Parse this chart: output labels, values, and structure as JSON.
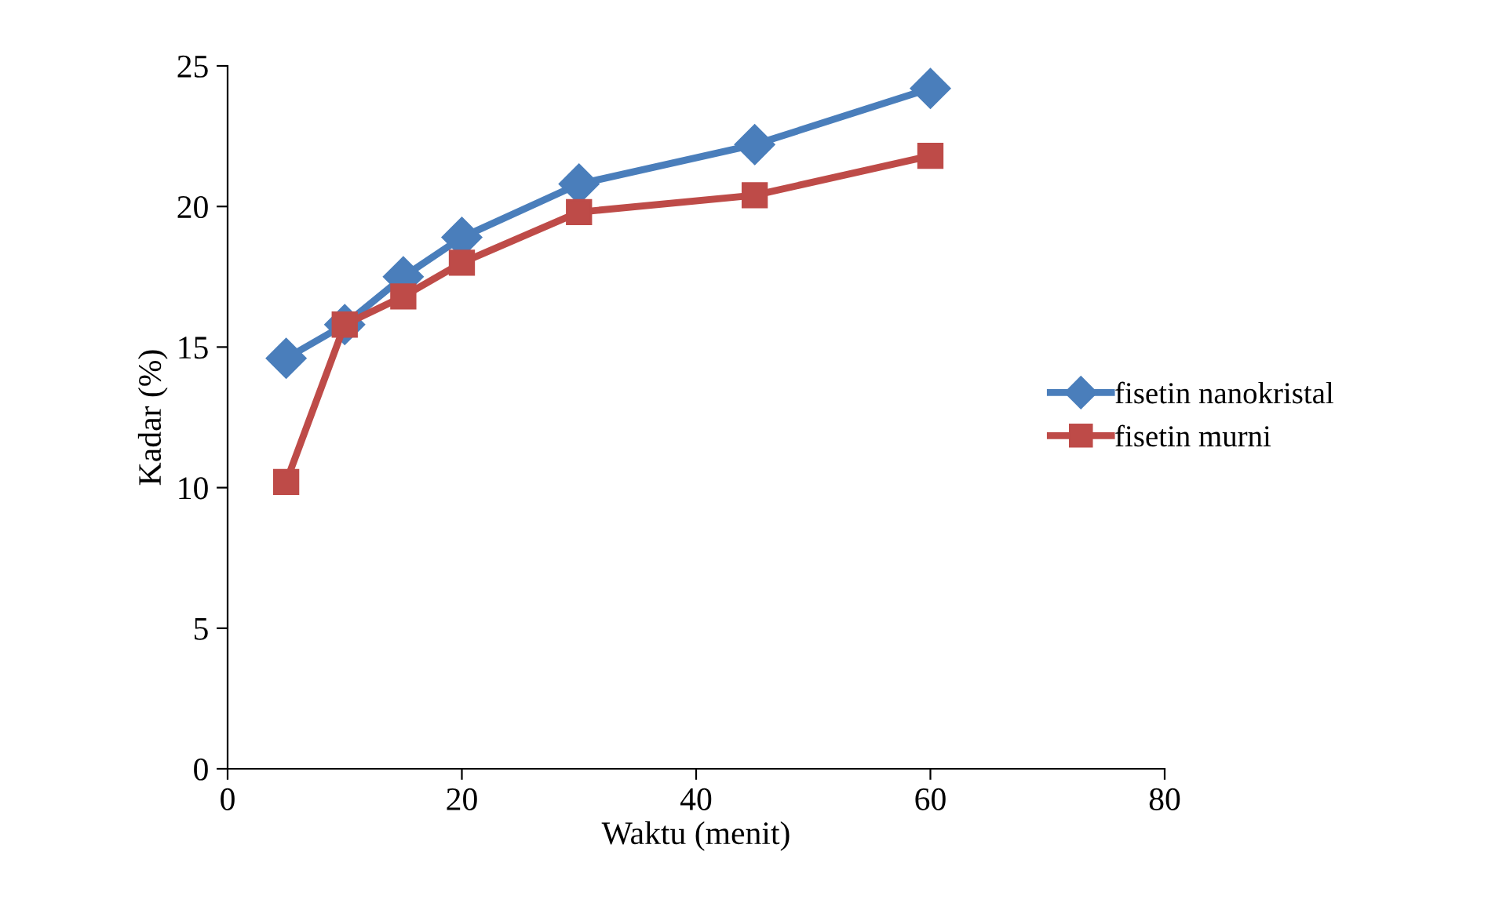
{
  "chart_data": {
    "type": "line",
    "xlabel": "Waktu (menit)",
    "ylabel": "Kadar (%)",
    "xlim": [
      0,
      80
    ],
    "xticks": [
      0,
      20,
      40,
      60,
      80
    ],
    "ylim": [
      0,
      25
    ],
    "yticks": [
      0,
      5,
      10,
      15,
      20,
      25
    ],
    "grid": false,
    "legend": "right",
    "line_style": "solid",
    "series": [
      {
        "name": "fisetin nanokristal",
        "color": "#4a7ebb",
        "marker": "diamond",
        "x": [
          5,
          10,
          15,
          20,
          30,
          45,
          60
        ],
        "values": [
          14.6,
          15.8,
          17.5,
          18.9,
          20.8,
          22.2,
          24.2
        ]
      },
      {
        "name": "fisetin murni",
        "color": "#be4b48",
        "marker": "square",
        "x": [
          5,
          10,
          15,
          20,
          30,
          45,
          60
        ],
        "values": [
          10.2,
          15.8,
          16.8,
          18.0,
          19.8,
          20.4,
          21.8
        ]
      }
    ]
  }
}
